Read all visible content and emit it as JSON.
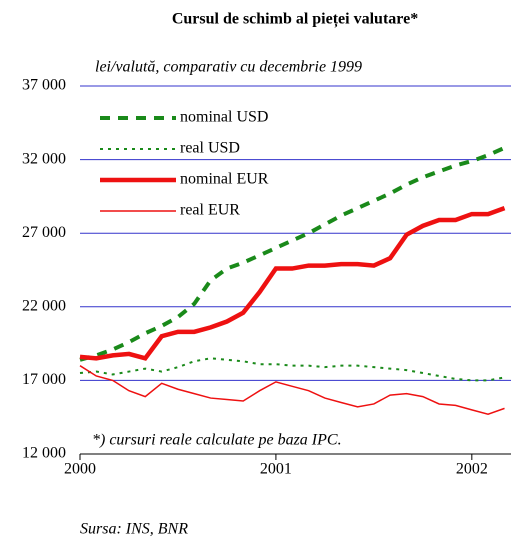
{
  "chart_data": {
    "type": "line",
    "title": "Cursul de schimb al pieței valutare*",
    "subtitle": "lei/valută, comparativ cu decembrie 1999",
    "note": "*) cursuri reale calculate pe baza IPC.",
    "source": "Sursa: INS, BNR",
    "x": [
      2000,
      2000.083,
      2000.167,
      2000.25,
      2000.333,
      2000.417,
      2000.5,
      2000.583,
      2000.667,
      2000.75,
      2000.833,
      2000.917,
      2001,
      2001.083,
      2001.167,
      2001.25,
      2001.333,
      2001.417,
      2001.5,
      2001.583,
      2001.667,
      2001.75,
      2001.833,
      2001.917,
      2002,
      2002.083,
      2002.167
    ],
    "xlim": [
      2000,
      2002.2
    ],
    "xticks": [
      2000,
      2001,
      2002
    ],
    "ylim": [
      12000,
      37000
    ],
    "yticks": [
      {
        "value": 12000,
        "label": "12 000"
      },
      {
        "value": 17000,
        "label": "17 000"
      },
      {
        "value": 22000,
        "label": "22 000"
      },
      {
        "value": 27000,
        "label": "27 000"
      },
      {
        "value": 32000,
        "label": "32 000"
      },
      {
        "value": 37000,
        "label": "37 000"
      }
    ],
    "grid": true,
    "legend": "upper left",
    "series": [
      {
        "name": "nominal USD",
        "color": "#1a8a1a",
        "width": 4,
        "dash": "10,8",
        "values": [
          18400,
          18700,
          19100,
          19600,
          20200,
          20700,
          21300,
          22200,
          23800,
          24600,
          25000,
          25500,
          26000,
          26500,
          27000,
          27600,
          28200,
          28700,
          29200,
          29700,
          30300,
          30800,
          31200,
          31600,
          31900,
          32300,
          32800
        ]
      },
      {
        "name": "real USD",
        "color": "#1a8a1a",
        "width": 2,
        "dash": "3,5",
        "values": [
          17500,
          17600,
          17400,
          17600,
          17800,
          17600,
          17900,
          18300,
          18500,
          18400,
          18300,
          18100,
          18100,
          18000,
          18000,
          17900,
          18000,
          18000,
          17900,
          17800,
          17700,
          17500,
          17300,
          17100,
          17000,
          17000,
          17200
        ]
      },
      {
        "name": "nominal EUR",
        "color": "#ee1111",
        "width": 4.5,
        "dash": "none",
        "values": [
          18600,
          18500,
          18700,
          18800,
          18500,
          20000,
          20300,
          20300,
          20600,
          21000,
          21600,
          23000,
          24600,
          24600,
          24800,
          24800,
          24900,
          24900,
          24800,
          25300,
          26900,
          27500,
          27900,
          27900,
          28300,
          28300,
          28700
        ]
      },
      {
        "name": "real EUR",
        "color": "#ee1111",
        "width": 1.5,
        "dash": "none",
        "values": [
          18000,
          17300,
          17000,
          16300,
          15900,
          16800,
          16400,
          16100,
          15800,
          15700,
          15600,
          16300,
          16900,
          16600,
          16300,
          15800,
          15500,
          15200,
          15400,
          16000,
          16100,
          15900,
          15400,
          15300,
          15000,
          14700,
          15100
        ]
      }
    ]
  }
}
